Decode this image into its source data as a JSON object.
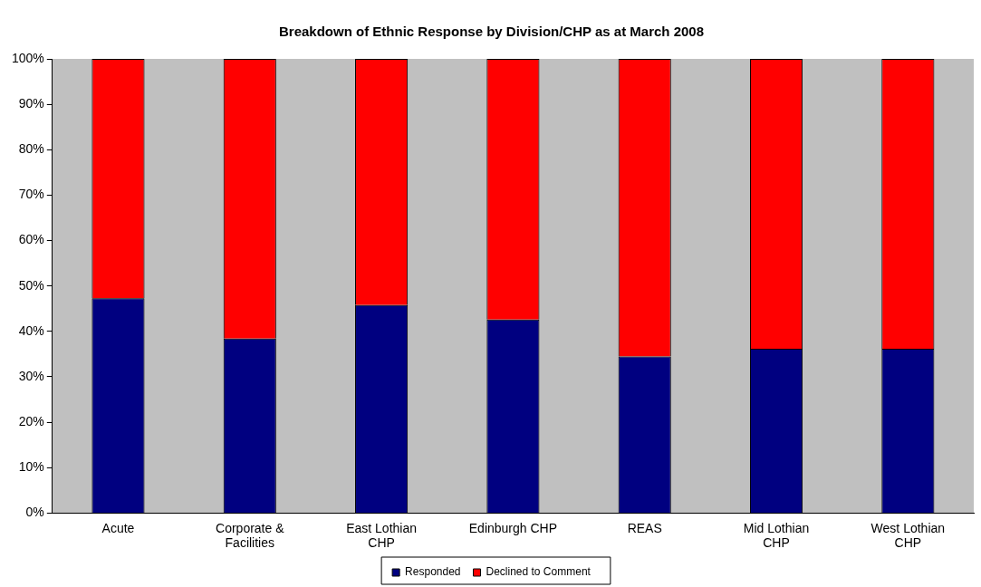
{
  "chart_data": {
    "type": "bar",
    "title": "Breakdown of Ethnic Response by Division/CHP as at March 2008",
    "categories": [
      "Acute",
      "Corporate & Facilities",
      "East Lothian CHP",
      "Edinburgh CHP",
      "REAS",
      "Mid Lothian CHP",
      "West Lothian CHP"
    ],
    "stacked": true,
    "ylim": [
      0,
      100
    ],
    "yticks": [
      {
        "value": 0,
        "label": "0%"
      },
      {
        "value": 10,
        "label": "10%"
      },
      {
        "value": 20,
        "label": "20%"
      },
      {
        "value": 30,
        "label": "30%"
      },
      {
        "value": 40,
        "label": "40%"
      },
      {
        "value": 50,
        "label": "50%"
      },
      {
        "value": 60,
        "label": "60%"
      },
      {
        "value": 70,
        "label": "70%"
      },
      {
        "value": 80,
        "label": "80%"
      },
      {
        "value": 90,
        "label": "90%"
      },
      {
        "value": 100,
        "label": "100%"
      }
    ],
    "series": [
      {
        "name": "Responded",
        "color": "#000080",
        "values": [
          47.3,
          38.4,
          45.8,
          42.6,
          34.5,
          36.2,
          36.2
        ]
      },
      {
        "name": "Declined to Comment",
        "color": "#ff0000",
        "values": [
          52.7,
          61.6,
          54.2,
          57.4,
          65.5,
          63.8,
          63.8
        ]
      }
    ],
    "grid": false,
    "legend": "bottom"
  }
}
